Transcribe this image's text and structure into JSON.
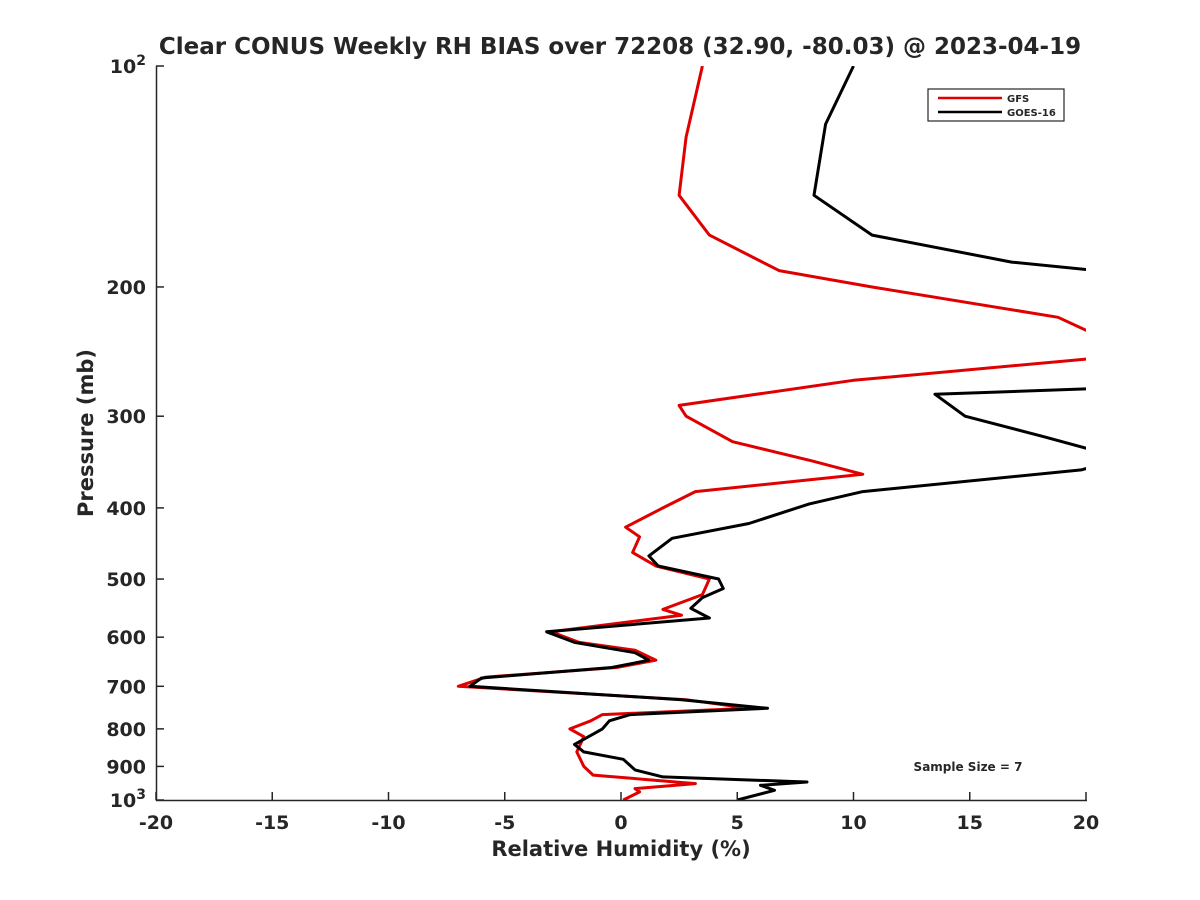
{
  "chart_data": {
    "type": "line",
    "title": "Clear CONUS Weekly RH BIAS over 72208 (32.90, -80.03) @ 2023-04-19",
    "xlabel": "Relative Humidity (%)",
    "ylabel": "Pressure (mb)",
    "xlim": [
      -20,
      20
    ],
    "ylim": [
      100,
      1000
    ],
    "y_scale": "log",
    "y_reversed": true,
    "grid": false,
    "legend_position": "top-right",
    "annotation": "Sample Size = 7",
    "x_ticks": [
      "-20",
      "-15",
      "-10",
      "-5",
      "0",
      "5",
      "10",
      "15",
      "20"
    ],
    "x_tick_values": [
      -20,
      -15,
      -10,
      -5,
      0,
      5,
      10,
      15,
      20
    ],
    "y_ticks": [
      {
        "label": "10",
        "sup": "2",
        "value": 100
      },
      {
        "label": "200",
        "sup": "",
        "value": 200
      },
      {
        "label": "300",
        "sup": "",
        "value": 300
      },
      {
        "label": "400",
        "sup": "",
        "value": 400
      },
      {
        "label": "500",
        "sup": "",
        "value": 500
      },
      {
        "label": "600",
        "sup": "",
        "value": 600
      },
      {
        "label": "700",
        "sup": "",
        "value": 700
      },
      {
        "label": "800",
        "sup": "",
        "value": 800
      },
      {
        "label": "900",
        "sup": "",
        "value": 900
      },
      {
        "label": "10",
        "sup": "3",
        "value": 1000
      }
    ],
    "series": [
      {
        "name": "GFS",
        "color": "#e00000",
        "points": [
          [
            3.5,
            100
          ],
          [
            2.8,
            125
          ],
          [
            2.5,
            150
          ],
          [
            3.8,
            170
          ],
          [
            6.8,
            190
          ],
          [
            10.8,
            200
          ],
          [
            18.8,
            220
          ],
          [
            20.5,
            233
          ],
          [
            20.5,
            250
          ],
          [
            10.0,
            268
          ],
          [
            2.5,
            290
          ],
          [
            2.8,
            300
          ],
          [
            4.8,
            325
          ],
          [
            8.2,
            345
          ],
          [
            10.4,
            360
          ],
          [
            3.2,
            380
          ],
          [
            1.8,
            400
          ],
          [
            0.2,
            425
          ],
          [
            0.8,
            438
          ],
          [
            0.5,
            460
          ],
          [
            1.5,
            480
          ],
          [
            3.8,
            500
          ],
          [
            3.5,
            525
          ],
          [
            1.8,
            550
          ],
          [
            2.6,
            560
          ],
          [
            -3.0,
            590
          ],
          [
            -1.8,
            610
          ],
          [
            0.6,
            625
          ],
          [
            1.5,
            645
          ],
          [
            -0.2,
            660
          ],
          [
            -5.8,
            680
          ],
          [
            -7.0,
            700
          ],
          [
            2.8,
            730
          ],
          [
            5.5,
            750
          ],
          [
            -0.8,
            765
          ],
          [
            -1.3,
            780
          ],
          [
            -2.2,
            800
          ],
          [
            -1.6,
            820
          ],
          [
            -1.9,
            860
          ],
          [
            -1.6,
            900
          ],
          [
            -1.2,
            925
          ],
          [
            3.2,
            950
          ],
          [
            0.6,
            965
          ],
          [
            0.8,
            975
          ],
          [
            0.1,
            1000
          ]
        ]
      },
      {
        "name": "GOES-16",
        "color": "#000000",
        "points": [
          [
            10.0,
            100
          ],
          [
            8.8,
            120
          ],
          [
            8.3,
            150
          ],
          [
            10.8,
            170
          ],
          [
            16.8,
            185
          ],
          [
            20.5,
            190
          ],
          [
            20.5,
            275
          ],
          [
            13.5,
            280
          ],
          [
            14.8,
            300
          ],
          [
            18.2,
            320
          ],
          [
            20.5,
            335
          ],
          [
            20.5,
            350
          ],
          [
            19.8,
            355
          ],
          [
            10.4,
            380
          ],
          [
            8.1,
            395
          ],
          [
            5.5,
            420
          ],
          [
            2.2,
            440
          ],
          [
            1.2,
            465
          ],
          [
            1.6,
            480
          ],
          [
            4.2,
            500
          ],
          [
            4.4,
            515
          ],
          [
            3.5,
            530
          ],
          [
            3.0,
            548
          ],
          [
            3.8,
            565
          ],
          [
            -3.2,
            590
          ],
          [
            -2.0,
            610
          ],
          [
            0.6,
            630
          ],
          [
            1.2,
            645
          ],
          [
            -0.4,
            660
          ],
          [
            -6.0,
            682
          ],
          [
            -6.5,
            700
          ],
          [
            2.6,
            730
          ],
          [
            6.3,
            750
          ],
          [
            0.4,
            765
          ],
          [
            -0.5,
            780
          ],
          [
            -0.8,
            800
          ],
          [
            -1.4,
            820
          ],
          [
            -2.0,
            840
          ],
          [
            -1.6,
            860
          ],
          [
            0.1,
            880
          ],
          [
            0.6,
            910
          ],
          [
            1.8,
            930
          ],
          [
            8.0,
            945
          ],
          [
            6.0,
            955
          ],
          [
            6.6,
            970
          ],
          [
            5.0,
            1000
          ]
        ]
      }
    ]
  }
}
